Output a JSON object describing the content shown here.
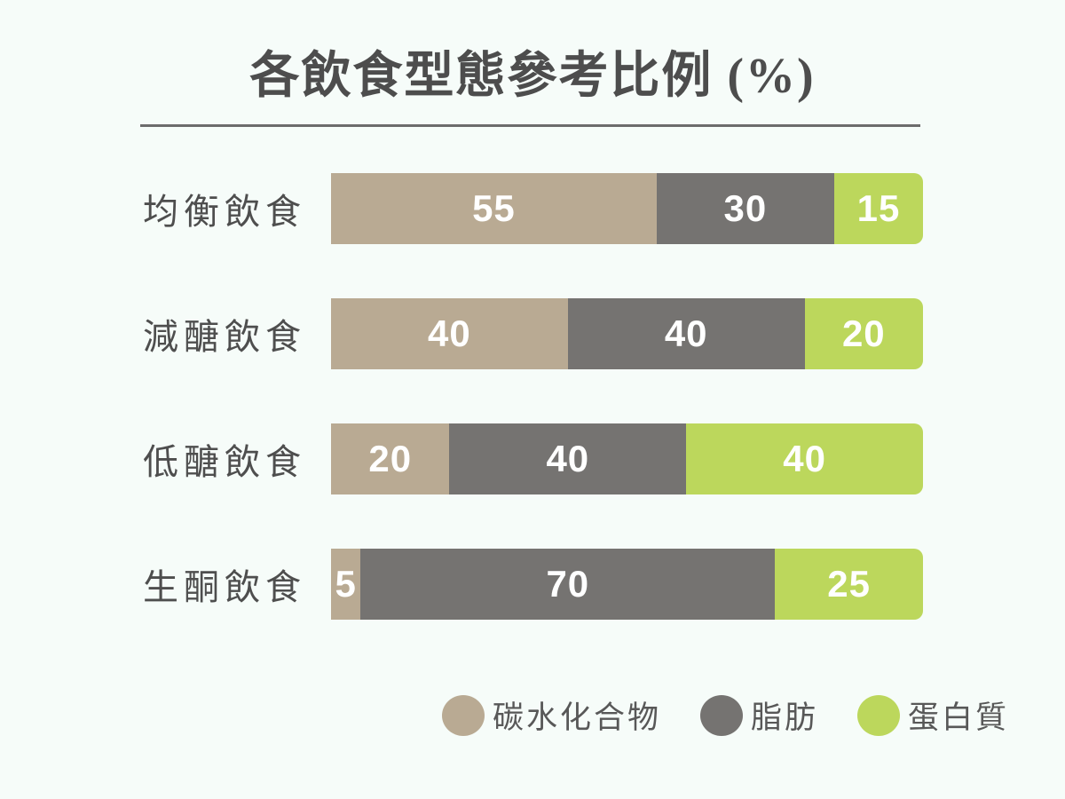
{
  "title": "各飲食型態參考比例 (%)",
  "colors": {
    "background": "#f6fcf9",
    "title_text": "#4d4d4d",
    "label_text": "#4e4e4e",
    "divider": "#6c6c6c",
    "value_text": "#ffffff",
    "carb": "#b9aa93",
    "fat": "#757371",
    "protein": "#bcd75c"
  },
  "chart_data": {
    "type": "bar",
    "orientation": "horizontal",
    "stacked": true,
    "unit": "%",
    "title": "各飲食型態參考比例 (%)",
    "categories": [
      "均衡飲食",
      "減醣飲食",
      "低醣飲食",
      "生酮飲食"
    ],
    "series": [
      {
        "name": "碳水化合物",
        "color": "#b9aa93",
        "values": [
          55,
          40,
          20,
          5
        ]
      },
      {
        "name": "脂肪",
        "color": "#757371",
        "values": [
          30,
          40,
          40,
          70
        ]
      },
      {
        "name": "蛋白質",
        "color": "#bcd75c",
        "values": [
          15,
          20,
          40,
          25
        ]
      }
    ],
    "xlim": [
      0,
      100
    ],
    "grid": false,
    "value_labels": true,
    "legend_position": "bottom"
  }
}
